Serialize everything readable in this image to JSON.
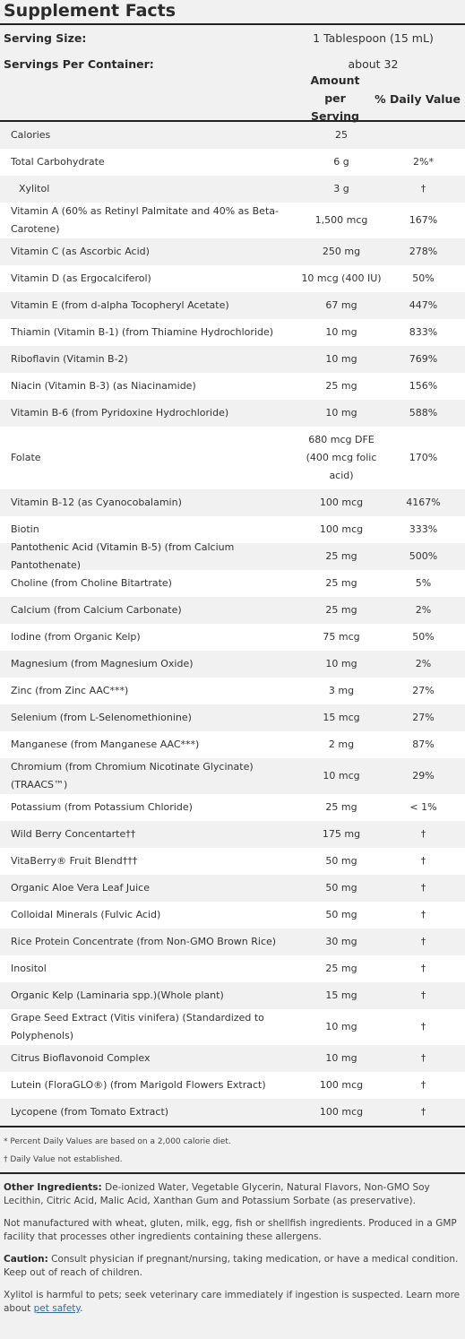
{
  "title": "Supplement Facts",
  "serving_size": {
    "label": "Serving Size:",
    "value": "1 Tablespoon (15 mL)"
  },
  "servings_per_container": {
    "label": "Servings Per Container:",
    "value": "about 32"
  },
  "columns": {
    "amount": "Amount per Serving",
    "dv": "% Daily Value"
  },
  "rows": [
    {
      "name": "Calories",
      "amount": "25",
      "dv": ""
    },
    {
      "name": "Total Carbohydrate",
      "amount": "6 g",
      "dv": "2%*"
    },
    {
      "name": "Xylitol",
      "amount": "3 g",
      "dv": "†"
    },
    {
      "name": "Vitamin A (60% as Retinyl Palmitate and 40% as Beta-Carotene)",
      "amount": "1,500 mcg",
      "dv": "167%"
    },
    {
      "name": "Vitamin C (as Ascorbic Acid)",
      "amount": "250 mg",
      "dv": "278%"
    },
    {
      "name": "Vitamin D (as Ergocalciferol)",
      "amount": "10 mcg (400 IU)",
      "dv": "50%"
    },
    {
      "name": "Vitamin E (from d-alpha Tocopheryl Acetate)",
      "amount": "67 mg",
      "dv": "447%"
    },
    {
      "name": "Thiamin (Vitamin B-1) (from Thiamine Hydrochloride)",
      "amount": "10 mg",
      "dv": "833%"
    },
    {
      "name": "Riboflavin (Vitamin B-2)",
      "amount": "10 mg",
      "dv": "769%"
    },
    {
      "name": "Niacin (Vitamin B-3) (as Niacinamide)",
      "amount": "25 mg",
      "dv": "156%"
    },
    {
      "name": "Vitamin B-6 (from Pyridoxine Hydrochloride)",
      "amount": "10 mg",
      "dv": "588%"
    },
    {
      "name": "Folate",
      "amount": "680 mcg DFE (400 mcg folic acid)",
      "dv": "170%"
    },
    {
      "name": "Vitamin B-12 (as Cyanocobalamin)",
      "amount": "100 mcg",
      "dv": "4167%"
    },
    {
      "name": "Biotin",
      "amount": "100 mcg",
      "dv": "333%"
    },
    {
      "name": "Pantothenic Acid (Vitamin B-5) (from Calcium Pantothenate)",
      "amount": "25 mg",
      "dv": "500%"
    },
    {
      "name": "Choline (from Choline Bitartrate)",
      "amount": "25 mg",
      "dv": "5%"
    },
    {
      "name": "Calcium (from Calcium Carbonate)",
      "amount": "25 mg",
      "dv": "2%"
    },
    {
      "name": "Iodine (from Organic Kelp)",
      "amount": "75 mcg",
      "dv": "50%"
    },
    {
      "name": "Magnesium (from Magnesium Oxide)",
      "amount": "10 mg",
      "dv": "2%"
    },
    {
      "name": "Zinc (from Zinc AAC***)",
      "amount": "3 mg",
      "dv": "27%"
    },
    {
      "name": "Selenium (from L-Selenomethionine)",
      "amount": "15 mcg",
      "dv": "27%"
    },
    {
      "name": "Manganese (from Manganese AAC***)",
      "amount": "2 mg",
      "dv": "87%"
    },
    {
      "name": "Chromium (from Chromium Nicotinate Glycinate) (TRAACS™)",
      "amount": "10 mcg",
      "dv": "29%"
    },
    {
      "name": "Potassium (from Potassium Chloride)",
      "amount": "25 mg",
      "dv": "< 1%"
    },
    {
      "name": "Wild Berry Concentarte††",
      "amount": "175 mg",
      "dv": "†"
    },
    {
      "name": "VitaBerry® Fruit Blend†††",
      "amount": "50 mg",
      "dv": "†"
    },
    {
      "name": "Organic Aloe Vera Leaf Juice",
      "amount": "50 mg",
      "dv": "†"
    },
    {
      "name": "Colloidal Minerals (Fulvic Acid)",
      "amount": "50 mg",
      "dv": "†"
    },
    {
      "name": "Rice Protein Concentrate (from Non-GMO Brown Rice)",
      "amount": "30 mg",
      "dv": "†"
    },
    {
      "name": "Inositol",
      "amount": "25 mg",
      "dv": "†"
    },
    {
      "name": "Organic Kelp (Laminaria spp.)(Whole plant)",
      "amount": "15 mg",
      "dv": "†"
    },
    {
      "name": "Grape Seed Extract (Vitis vinifera) (Standardized to Polyphenols)",
      "amount": "10 mg",
      "dv": "†"
    },
    {
      "name": "Citrus Bioflavonoid Complex",
      "amount": "10 mg",
      "dv": "†"
    },
    {
      "name": "Lutein (FloraGLO®) (from Marigold Flowers Extract)",
      "amount": "100 mcg",
      "dv": "†"
    },
    {
      "name": "Lycopene (from Tomato Extract)",
      "amount": "100 mcg",
      "dv": "†"
    }
  ],
  "footnotes": {
    "percent_dv": "* Percent Daily Values are based on a 2,000 calorie diet.",
    "not_established": "† Daily Value not established."
  },
  "other_ingredients": {
    "label": "Other Ingredients:",
    "text": " De-ionized Water, Vegetable Glycerin, Natural Flavors, Non-GMO Soy Lecithin, Citric Acid, Malic Acid, Xanthan Gum and Potassium Sorbate (as preservative)."
  },
  "allergen_note": "Not manufactured with wheat, gluten, milk, egg, fish or shellfish ingredients. Produced in a GMP facility that processes other ingredients containing these allergens.",
  "caution": {
    "label": "Caution:",
    "text": " Consult physician if pregnant/nursing, taking medication, or have a medical condition. Keep out of reach of children."
  },
  "xylitol_warning": {
    "text": "Xylitol is harmful to pets; seek veterinary care immediately if ingestion is suspected. Learn more about ",
    "link": "pet safety",
    "end": "."
  }
}
